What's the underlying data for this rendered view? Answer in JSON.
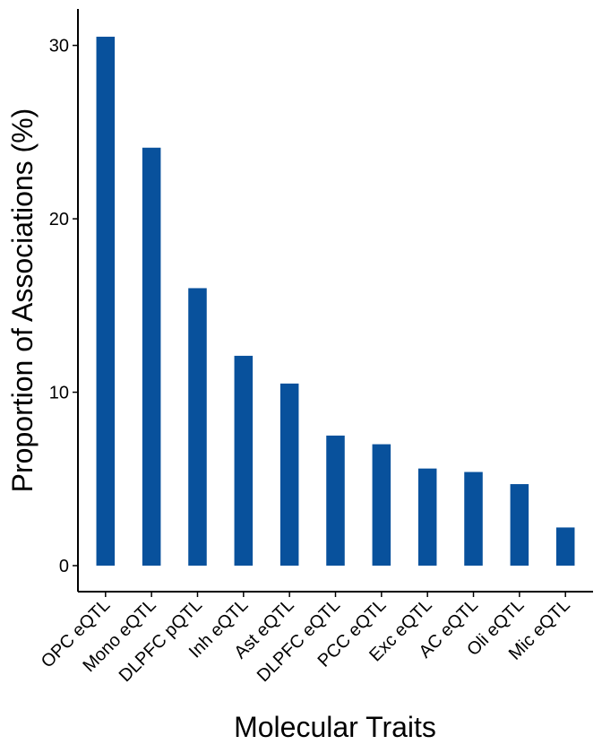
{
  "chart_data": {
    "type": "bar",
    "x_label": "Molecular Traits",
    "y_label": "Proportion of Associations (%)",
    "categories": [
      "OPC eQTL",
      "Mono eQTL",
      "DLPFC pQTL",
      "Inh eQTL",
      "Ast eQTL",
      "DLPFC eQTL",
      "PCC eQTL",
      "Exc eQTL",
      "AC eQTL",
      "Oli eQTL",
      "Mic eQTL"
    ],
    "values": [
      30.5,
      24.1,
      16.0,
      12.1,
      10.5,
      7.5,
      7.0,
      5.6,
      5.4,
      4.7,
      2.2
    ],
    "color": "#08519c",
    "ylim": [
      -1.5,
      32.1
    ],
    "yticks": [
      0,
      10,
      20,
      30
    ],
    "grid": false
  }
}
